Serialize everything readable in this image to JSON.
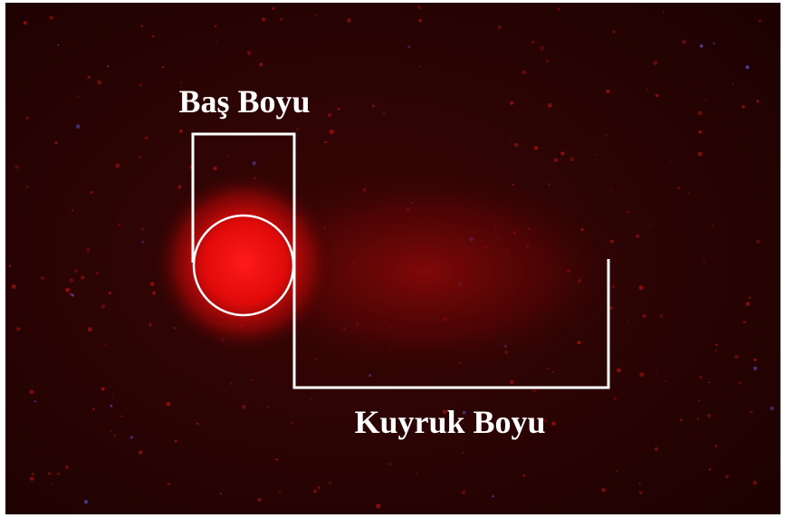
{
  "labels": {
    "head": "Baş Boyu",
    "tail": "Kuyruk Boyu"
  }
}
